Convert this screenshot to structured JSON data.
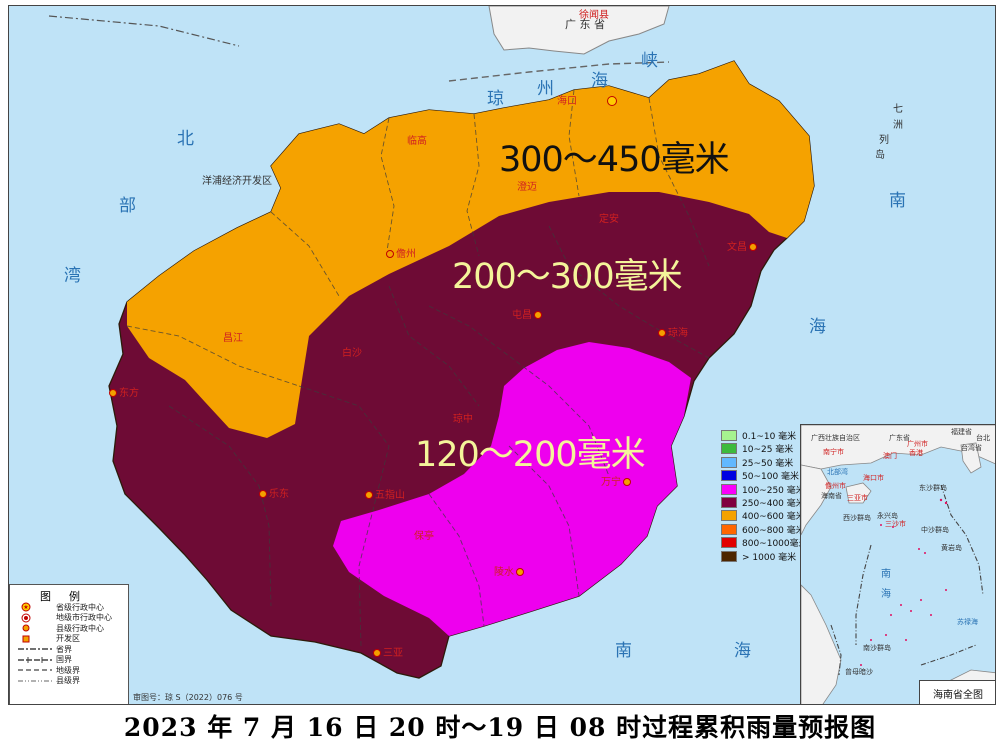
{
  "caption": "2023 年 7 月 16 日 20 时～19 日 08 时过程累积雨量预报图",
  "top_label": "广 东 省",
  "top_county": "徐闻县",
  "strait_chars": [
    "琼",
    "州",
    "海",
    "峡"
  ],
  "seas": {
    "beibu": [
      "北",
      "部",
      "湾"
    ],
    "nanhai_right": [
      "南",
      "海"
    ],
    "nanhai_bottom": [
      "南",
      "海"
    ],
    "qizhou": [
      "七",
      "洲",
      "列",
      "岛"
    ]
  },
  "zones": [
    {
      "label": "300～450毫米",
      "color": "#f5a200",
      "text_color": "#111111"
    },
    {
      "label": "200～300毫米",
      "color": "#6e0b35",
      "text_color": "#f4f49a"
    },
    {
      "label": "120～200毫米",
      "color": "#ee00ee",
      "text_color": "#f4f49a"
    }
  ],
  "cities": [
    {
      "name": "海口",
      "type": "capital"
    },
    {
      "name": "临高",
      "type": "county"
    },
    {
      "name": "澄迈",
      "type": "county"
    },
    {
      "name": "定安",
      "type": "county"
    },
    {
      "name": "文昌",
      "type": "county"
    },
    {
      "name": "儋州",
      "type": "county"
    },
    {
      "name": "屯昌",
      "type": "county"
    },
    {
      "name": "琼海",
      "type": "county"
    },
    {
      "name": "昌江",
      "type": "county"
    },
    {
      "name": "白沙",
      "type": "county"
    },
    {
      "name": "东方",
      "type": "county"
    },
    {
      "name": "琼中",
      "type": "county"
    },
    {
      "name": "乐东",
      "type": "county"
    },
    {
      "name": "五指山",
      "type": "county"
    },
    {
      "name": "万宁",
      "type": "county"
    },
    {
      "name": "保亭",
      "type": "county"
    },
    {
      "name": "陵水",
      "type": "county"
    },
    {
      "name": "三亚",
      "type": "county"
    }
  ],
  "dev_zone": "洋浦经济开发区",
  "rain_legend": [
    {
      "label": "0.1~10 毫米",
      "color": "#a6f28f"
    },
    {
      "label": "10~25 毫米",
      "color": "#3dba3d"
    },
    {
      "label": "25~50 毫米",
      "color": "#61b8ff"
    },
    {
      "label": "50~100 毫米",
      "color": "#0000e1"
    },
    {
      "label": "100~250 毫米",
      "color": "#fa00fa"
    },
    {
      "label": "250~400 毫米",
      "color": "#800040"
    },
    {
      "label": "400~600 毫米",
      "color": "#f5a200"
    },
    {
      "label": "600~800 毫米",
      "color": "#ff6600"
    },
    {
      "label": "800~1000毫米",
      "color": "#e10000"
    },
    {
      "label": "> 1000 毫米",
      "color": "#4d2600"
    }
  ],
  "map_legend": {
    "title": "图例",
    "items": [
      {
        "label": "省级行政中心",
        "symbol": "star"
      },
      {
        "label": "地级市行政中心",
        "symbol": "double-circle"
      },
      {
        "label": "县级行政中心",
        "symbol": "dot"
      },
      {
        "label": "开发区",
        "symbol": "square"
      },
      {
        "label": "省界",
        "symbol": "dash-dot"
      },
      {
        "label": "国界",
        "symbol": "border"
      },
      {
        "label": "地级界",
        "symbol": "dash"
      },
      {
        "label": "县级界",
        "symbol": "dash-dot-dot"
      }
    ]
  },
  "review_number": "审图号：琼 S（2022）076 号",
  "inset": {
    "title": "海南省全图",
    "labels": {
      "guangxi": "广西壮族自治区",
      "guangdong": "广东省",
      "fujian": "福建省",
      "nanning": "南宁市",
      "guangzhou": "广州市",
      "macau": "澳门",
      "hongkong": "香港",
      "taiwan": "台湾省",
      "taibei": "台北",
      "beibuwan": "北部湾",
      "haikou": "海口市",
      "danzhou": "儋州市",
      "dongsha": "东沙群岛",
      "sanya": "三亚市",
      "sansha": "三沙市",
      "hainan": "海南省",
      "xisha": "西沙群岛",
      "yongxing": "永兴岛",
      "zhongsha": "中沙群岛",
      "huangyan": "黄岩岛",
      "nan": "南",
      "hai": "海",
      "zengmu": "曾母暗沙",
      "nansha": "南沙群岛",
      "sulu": "苏禄海"
    }
  }
}
